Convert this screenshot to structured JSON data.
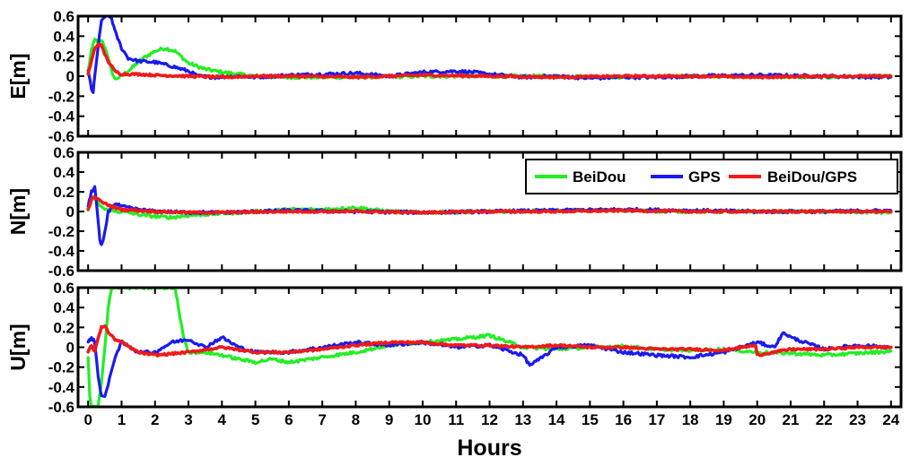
{
  "chart_data": {
    "type": "line",
    "xlabel": "Hours",
    "xlim": [
      -0.3,
      24.3
    ],
    "xticks": [
      0,
      1,
      2,
      3,
      4,
      5,
      6,
      7,
      8,
      9,
      10,
      11,
      12,
      13,
      14,
      15,
      16,
      17,
      18,
      19,
      20,
      21,
      22,
      23,
      24
    ],
    "ylim": [
      -0.6,
      0.6
    ],
    "yticks": [
      0.6,
      0.4,
      0.2,
      0,
      -0.2,
      -0.4,
      -0.6
    ],
    "ytick_labels": [
      "0.6",
      "0.4",
      "0.2",
      "0",
      "-0.2",
      "-0.4",
      "-0.6"
    ],
    "legend": {
      "placement": "top-right of middle panel",
      "entries": [
        "BeiDou",
        "GPS",
        "BeiDou/GPS"
      ]
    },
    "colors": {
      "BeiDou": "#22ee22",
      "GPS": "#1a1af0",
      "BeiDou/GPS": "#f01a1a"
    },
    "panels": [
      {
        "ylabel": "E[m]",
        "series": [
          {
            "name": "BeiDou",
            "x": [
              0,
              0.1,
              0.2,
              0.3,
              0.4,
              0.55,
              0.7,
              0.8,
              1.0,
              1.3,
              1.6,
              2.0,
              2.3,
              2.6,
              3.0,
              3.5,
              4.0,
              4.5,
              5,
              6,
              8,
              10,
              12,
              14,
              16,
              18,
              20,
              22,
              24
            ],
            "y": [
              0.05,
              0.25,
              0.38,
              0.32,
              0.36,
              0.25,
              0.05,
              -0.03,
              0.0,
              0.08,
              0.17,
              0.25,
              0.28,
              0.25,
              0.13,
              0.07,
              0.04,
              0.02,
              0.0,
              -0.01,
              -0.01,
              0.0,
              0.0,
              0.0,
              -0.01,
              0.0,
              0.0,
              -0.01,
              0.0
            ]
          },
          {
            "name": "GPS",
            "x": [
              0,
              0.1,
              0.15,
              0.2,
              0.3,
              0.4,
              0.5,
              0.6,
              0.7,
              0.8,
              1.0,
              1.2,
              1.5,
              2.0,
              2.5,
              3.0,
              3.3,
              3.8,
              4.5,
              5,
              6,
              7,
              8,
              9,
              10,
              11,
              11.5,
              12,
              13,
              14,
              15,
              16,
              17,
              18,
              20,
              22,
              24
            ],
            "y": [
              0.05,
              -0.12,
              -0.17,
              0.0,
              0.3,
              0.55,
              0.6,
              0.6,
              0.58,
              0.45,
              0.28,
              0.18,
              0.15,
              0.14,
              0.1,
              0.05,
              0.0,
              -0.01,
              0.0,
              -0.01,
              0.01,
              0.02,
              0.03,
              0.0,
              0.04,
              0.05,
              0.04,
              0.02,
              -0.01,
              0.0,
              -0.02,
              -0.01,
              -0.01,
              0.0,
              0.01,
              0.0,
              -0.01
            ]
          },
          {
            "name": "BeiDou/GPS",
            "x": [
              0,
              0.1,
              0.2,
              0.3,
              0.4,
              0.5,
              0.6,
              0.8,
              1.0,
              1.5,
              2.0,
              3.0,
              4.0,
              5,
              6,
              8,
              10,
              12,
              14,
              16,
              18,
              20,
              22,
              24
            ],
            "y": [
              0.02,
              0.15,
              0.28,
              0.32,
              0.3,
              0.22,
              0.15,
              0.05,
              0.02,
              0.02,
              0.01,
              0.0,
              -0.01,
              0.0,
              0.0,
              -0.01,
              0.01,
              0.0,
              -0.01,
              0.0,
              0.0,
              -0.01,
              0.0,
              0.0
            ]
          }
        ]
      },
      {
        "ylabel": "N[m]",
        "series": [
          {
            "name": "BeiDou",
            "x": [
              0,
              0.1,
              0.2,
              0.3,
              0.5,
              0.8,
              1.0,
              1.5,
              2.0,
              2.5,
              3.0,
              4.0,
              5,
              6,
              7,
              8,
              9,
              10,
              12,
              14,
              16,
              18,
              20,
              22,
              24
            ],
            "y": [
              0.02,
              0.1,
              0.15,
              0.08,
              0.02,
              0.0,
              0.0,
              -0.03,
              -0.05,
              -0.06,
              -0.04,
              -0.02,
              0.0,
              0.02,
              0.02,
              0.04,
              0.0,
              -0.01,
              0.0,
              0.01,
              0.01,
              0.0,
              0.0,
              0.0,
              -0.01
            ]
          },
          {
            "name": "GPS",
            "x": [
              0,
              0.1,
              0.2,
              0.3,
              0.35,
              0.4,
              0.5,
              0.6,
              0.8,
              1.0,
              1.5,
              2.0,
              3.0,
              4.0,
              5,
              6,
              8,
              10,
              12,
              14,
              16,
              18,
              20,
              22,
              24
            ],
            "y": [
              0.05,
              0.2,
              0.25,
              -0.1,
              -0.3,
              -0.35,
              -0.22,
              0.0,
              0.08,
              0.05,
              0.02,
              0.0,
              -0.01,
              -0.01,
              0.0,
              0.01,
              0.0,
              -0.01,
              0.0,
              0.01,
              0.02,
              0.01,
              0.0,
              0.0,
              0.01
            ]
          },
          {
            "name": "BeiDou/GPS",
            "x": [
              0,
              0.1,
              0.2,
              0.3,
              0.5,
              0.8,
              1.0,
              1.5,
              2.0,
              3.0,
              4.0,
              6,
              8,
              10,
              12,
              14,
              16,
              18,
              20,
              22,
              24
            ],
            "y": [
              0.02,
              0.12,
              0.15,
              0.12,
              0.08,
              0.04,
              0.02,
              0.01,
              0.0,
              -0.01,
              -0.01,
              0.0,
              0.0,
              -0.01,
              0.0,
              0.0,
              0.01,
              0.0,
              0.0,
              0.0,
              0.0
            ]
          }
        ]
      },
      {
        "ylabel": "U[m]",
        "series": [
          {
            "name": "BeiDou",
            "x": [
              0,
              0.05,
              0.1,
              0.2,
              0.3,
              0.4,
              0.5,
              0.6,
              0.7,
              0.8,
              1.0,
              2.6,
              2.7,
              2.8,
              2.9,
              3.0,
              3.5,
              4.0,
              4.5,
              5,
              5.5,
              6,
              7,
              8,
              9,
              10,
              11,
              12,
              13,
              14,
              15,
              16,
              17,
              18,
              19,
              20,
              21,
              22,
              23,
              24
            ],
            "y": [
              -0.1,
              -0.5,
              -0.6,
              -0.6,
              -0.6,
              -0.35,
              0.0,
              0.4,
              0.6,
              0.6,
              0.6,
              0.6,
              0.4,
              0.2,
              0.05,
              -0.05,
              -0.05,
              -0.08,
              -0.12,
              -0.15,
              -0.12,
              -0.15,
              -0.1,
              -0.05,
              0.02,
              0.05,
              0.08,
              0.12,
              0.0,
              -0.02,
              0.0,
              0.01,
              -0.02,
              -0.03,
              -0.02,
              -0.05,
              -0.06,
              -0.08,
              -0.06,
              -0.04
            ]
          },
          {
            "name": "GPS",
            "x": [
              0,
              0.1,
              0.2,
              0.3,
              0.4,
              0.5,
              0.6,
              0.8,
              1.0,
              1.5,
              2.0,
              2.5,
              3.0,
              3.5,
              4.0,
              4.5,
              5,
              6,
              7,
              8,
              9,
              10,
              11,
              12,
              13,
              13.2,
              13.5,
              14,
              15,
              16,
              17,
              18,
              19,
              20,
              20.5,
              20.8,
              21,
              22,
              23,
              24
            ],
            "y": [
              0.05,
              0.1,
              0.05,
              -0.3,
              -0.48,
              -0.5,
              -0.38,
              -0.1,
              0.05,
              -0.05,
              -0.05,
              0.05,
              0.08,
              0.0,
              0.1,
              0.0,
              -0.05,
              -0.05,
              0.0,
              0.05,
              0.02,
              0.05,
              0.0,
              0.02,
              -0.08,
              -0.18,
              -0.12,
              0.0,
              0.02,
              -0.05,
              -0.08,
              -0.1,
              -0.05,
              0.05,
              0.0,
              0.15,
              0.1,
              -0.02,
              0.02,
              0.0
            ]
          },
          {
            "name": "BeiDou/GPS",
            "x": [
              0,
              0.1,
              0.2,
              0.3,
              0.4,
              0.5,
              0.6,
              0.8,
              1.0,
              1.5,
              2.0,
              3.0,
              4.0,
              5,
              6,
              7,
              8,
              9,
              10,
              11,
              12,
              13,
              14,
              15,
              16,
              17,
              18,
              19,
              19.95,
              20.0,
              21,
              22,
              23,
              24
            ],
            "y": [
              -0.05,
              0.02,
              -0.05,
              0.1,
              0.2,
              0.22,
              0.15,
              0.08,
              0.05,
              -0.05,
              -0.08,
              -0.05,
              0.0,
              -0.05,
              -0.05,
              -0.02,
              0.02,
              0.05,
              0.05,
              0.02,
              0.02,
              0.0,
              0.02,
              0.0,
              0.0,
              -0.02,
              -0.02,
              -0.03,
              0.02,
              -0.08,
              -0.02,
              -0.02,
              0.0,
              0.0
            ]
          }
        ]
      }
    ]
  }
}
